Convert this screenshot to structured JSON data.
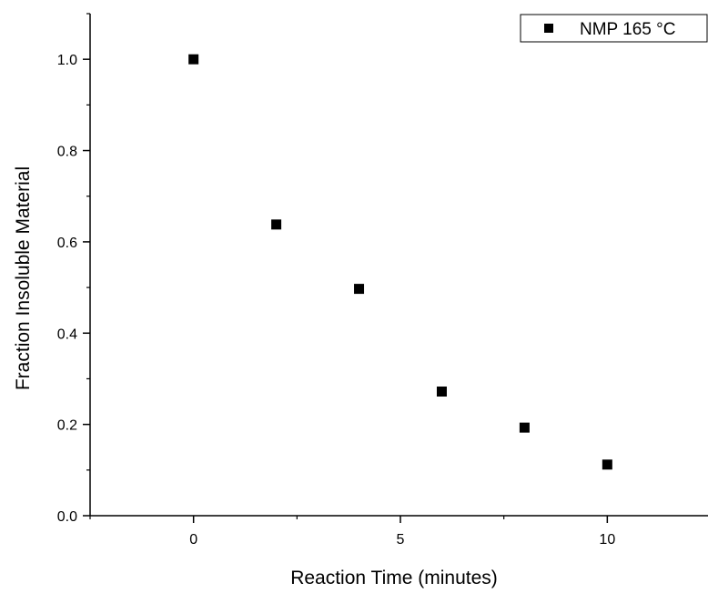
{
  "chart_data": {
    "type": "scatter",
    "title": "",
    "xlabel": "Reaction Time (minutes)",
    "ylabel": "Fraction Insoluble Material",
    "xlim": [
      -2.5,
      12.5
    ],
    "ylim": [
      0,
      1.1
    ],
    "x_ticks": [
      0,
      5,
      10
    ],
    "x_tick_labels": [
      "0",
      "5",
      "10"
    ],
    "y_ticks": [
      0,
      0.2,
      0.4,
      0.6,
      0.8,
      1.0
    ],
    "y_tick_labels": [
      "0.0",
      "0.2",
      "0.4",
      "0.6",
      "0.8",
      "1.0"
    ],
    "grid": false,
    "legend_position": "top-right",
    "series": [
      {
        "name": "NMP 165 °C",
        "marker": "square",
        "color": "#000000",
        "points": [
          {
            "x": 0,
            "y": 1.0
          },
          {
            "x": 2,
            "y": 0.638
          },
          {
            "x": 4,
            "y": 0.497
          },
          {
            "x": 6,
            "y": 0.272
          },
          {
            "x": 8,
            "y": 0.193
          },
          {
            "x": 10,
            "y": 0.112
          }
        ]
      }
    ]
  }
}
